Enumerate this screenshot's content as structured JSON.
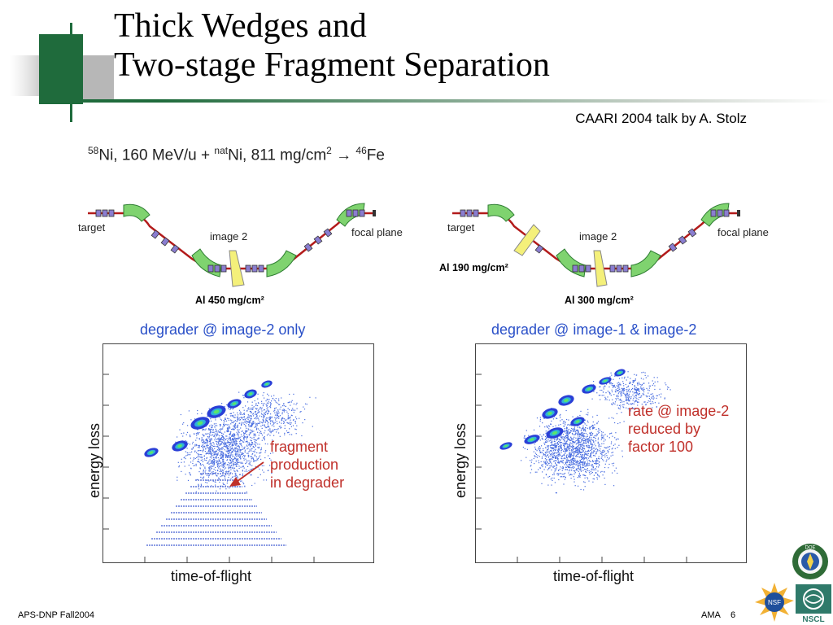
{
  "slide": {
    "title_line1": "Thick Wedges and",
    "title_line2": "Two-stage Fragment Separation",
    "credit": "CAARI 2004 talk by A. Stolz",
    "reaction": {
      "proj_mass": "58",
      "proj_text": "Ni, 160 MeV/u + ",
      "target_mass": "nat",
      "target_text": "Ni, 811 mg/cm",
      "thickness_exp": "2",
      "arrow": " → ",
      "product_mass": "46",
      "product_text": "Fe"
    }
  },
  "left_diagram": {
    "target_label": "target",
    "image_label": "image 2",
    "focal_label": "focal plane",
    "degrader_label": "Al 450 mg/cm²"
  },
  "right_diagram": {
    "target_label": "target",
    "image_label": "image 2",
    "focal_label": "focal plane",
    "degrader1_label": "Al 190 mg/cm²",
    "degrader2_label": "Al 300 mg/cm²"
  },
  "left_plot": {
    "title": "degrader @ image-2 only",
    "xlabel": "time-of-flight",
    "ylabel": "energy loss",
    "annotation_lines": [
      "fragment",
      "production",
      "in degrader"
    ]
  },
  "right_plot": {
    "title": "degrader @ image-1 & image-2",
    "xlabel": "time-of-flight",
    "ylabel": "energy loss",
    "annotation_lines": [
      "rate @ image-2",
      "reduced by",
      "factor 100"
    ]
  },
  "footer": {
    "left": "APS-DNP Fall2004",
    "right_label": "AMA",
    "page_number": "6"
  },
  "logos": {
    "doe": "DOE",
    "nsf": "NSF",
    "nscl": "NSCL"
  },
  "colors": {
    "accent_green": "#1f6b3c",
    "plot_title_blue": "#2a50c8",
    "annotation_red": "#c0302a",
    "beamline_red": "#b31b1b",
    "magnet_green": "#7fd36f",
    "degrader_yellow": "#f4f07a"
  }
}
